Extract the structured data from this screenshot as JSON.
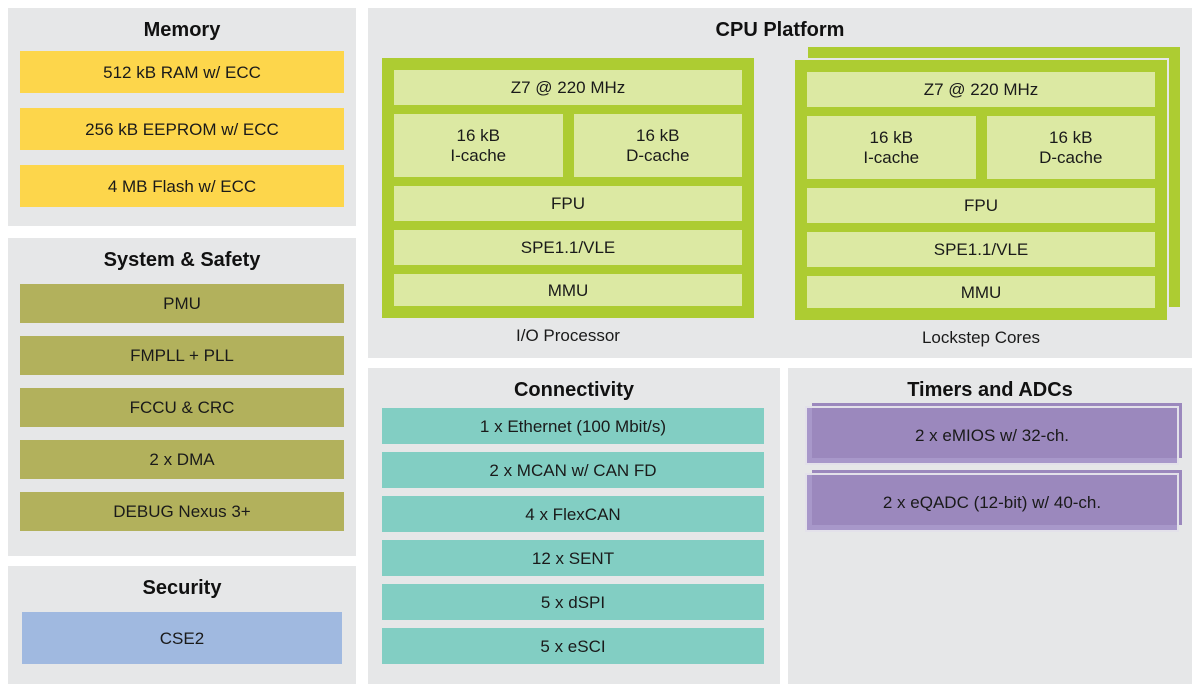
{
  "colors": {
    "background": "#ffffff",
    "panel_gray": "#e6e7e8",
    "memory_yellow": "#fdd64b",
    "system_olive": "#b2b15c",
    "security_blue": "#a0b9e0",
    "core_lime": "#adcc32",
    "core_inner_green": "#dce9a3",
    "connectivity_teal": "#82cec3",
    "timers_purple": "#a898ca",
    "timers_purple_shadow": "#9b88bd",
    "text": "#1a1a1a"
  },
  "panels": {
    "memory": {
      "title": "Memory",
      "items": [
        "512 kB RAM w/ ECC",
        "256 kB EEPROM w/ ECC",
        "4 MB Flash w/ ECC"
      ]
    },
    "system_safety": {
      "title": "System & Safety",
      "items": [
        "PMU",
        "FMPLL + PLL",
        "FCCU & CRC",
        "2 x DMA",
        "DEBUG Nexus 3+"
      ]
    },
    "security": {
      "title": "Security",
      "items": [
        "CSE2"
      ]
    },
    "cpu_platform": {
      "title": "CPU Platform",
      "core": {
        "freq": "Z7 @ 220 MHz",
        "icache": [
          "16 kB",
          "I-cache"
        ],
        "dcache": [
          "16 kB",
          "D-cache"
        ],
        "fpu": "FPU",
        "spe": "SPE1.1/VLE",
        "mmu": "MMU"
      },
      "captions": [
        "I/O Processor",
        "Lockstep Cores"
      ]
    },
    "connectivity": {
      "title": "Connectivity",
      "items": [
        "1 x Ethernet (100 Mbit/s)",
        "2 x MCAN w/ CAN FD",
        "4 x FlexCAN",
        "12 x SENT",
        "5 x dSPI",
        "5 x eSCI"
      ]
    },
    "timers_adcs": {
      "title": "Timers and ADCs",
      "items": [
        "2 x eMIOS w/ 32-ch.",
        "2 x eQADC (12-bit) w/ 40-ch."
      ]
    }
  }
}
